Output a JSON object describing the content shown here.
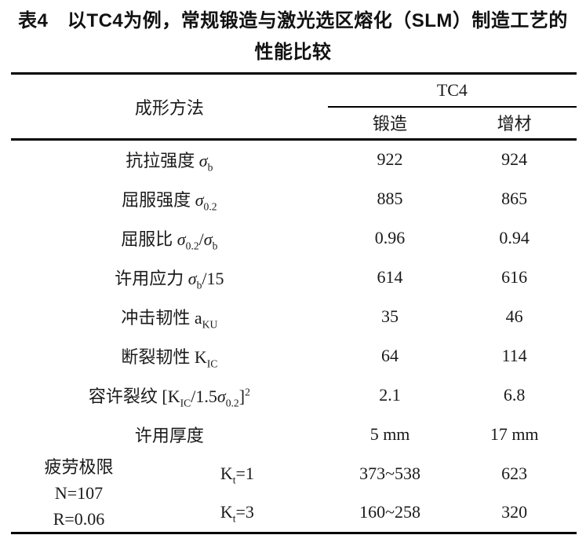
{
  "colors": {
    "background": "#ffffff",
    "text": "#1a1a1a",
    "rule": "#000000"
  },
  "title": "表4　以TC4为例，常规锻造与激光选区熔化（SLM）制造工艺的性能比较",
  "table": {
    "header": {
      "method_label": "成形方法",
      "group_label": "TC4",
      "col_forging": "锻造",
      "col_additive": "增材"
    },
    "rows": [
      {
        "label": [
          {
            "t": "抗拉强度 ",
            "s": "n"
          },
          {
            "t": "σ",
            "s": "i"
          },
          {
            "t": "b",
            "s": "sub"
          }
        ],
        "forge": "922",
        "am": "924"
      },
      {
        "label": [
          {
            "t": "屈服强度 ",
            "s": "n"
          },
          {
            "t": "σ",
            "s": "i"
          },
          {
            "t": "0.2",
            "s": "sub"
          }
        ],
        "forge": "885",
        "am": "865"
      },
      {
        "label": [
          {
            "t": "屈服比 ",
            "s": "n"
          },
          {
            "t": "σ",
            "s": "i"
          },
          {
            "t": "0.2",
            "s": "sub"
          },
          {
            "t": "/",
            "s": "n"
          },
          {
            "t": "σ",
            "s": "i"
          },
          {
            "t": "b",
            "s": "sub"
          }
        ],
        "forge": "0.96",
        "am": "0.94"
      },
      {
        "label": [
          {
            "t": "许用应力 ",
            "s": "n"
          },
          {
            "t": "σ",
            "s": "i"
          },
          {
            "t": "b",
            "s": "sub"
          },
          {
            "t": "/15",
            "s": "n"
          }
        ],
        "forge": "614",
        "am": "616"
      },
      {
        "label": [
          {
            "t": "冲击韧性 a",
            "s": "n"
          },
          {
            "t": "KU",
            "s": "sub"
          }
        ],
        "forge": "35",
        "am": "46"
      },
      {
        "label": [
          {
            "t": "断裂韧性 K",
            "s": "n"
          },
          {
            "t": "IC",
            "s": "sub"
          }
        ],
        "forge": "64",
        "am": "114"
      },
      {
        "label": [
          {
            "t": "容许裂纹 [K",
            "s": "n"
          },
          {
            "t": "IC",
            "s": "sub"
          },
          {
            "t": "/1.5",
            "s": "n"
          },
          {
            "t": "σ",
            "s": "i"
          },
          {
            "t": "0.2",
            "s": "sub"
          },
          {
            "t": "]",
            "s": "n"
          },
          {
            "t": "2",
            "s": "sup"
          }
        ],
        "forge": "2.1",
        "am": "6.8"
      },
      {
        "label": [
          {
            "t": "许用厚度",
            "s": "n"
          }
        ],
        "forge": "5 mm",
        "am": "17 mm"
      }
    ],
    "fatigue": {
      "label_lines": [
        "疲劳极限",
        "N=107",
        "R=0.06"
      ],
      "rows": [
        {
          "kt": [
            {
              "t": "K",
              "s": "n"
            },
            {
              "t": "t",
              "s": "sub"
            },
            {
              "t": "=1",
              "s": "n"
            }
          ],
          "forge": "373~538",
          "am": "623"
        },
        {
          "kt": [
            {
              "t": "K",
              "s": "n"
            },
            {
              "t": "t",
              "s": "sub"
            },
            {
              "t": "=3",
              "s": "n"
            }
          ],
          "forge": "160~258",
          "am": "320"
        }
      ]
    }
  }
}
